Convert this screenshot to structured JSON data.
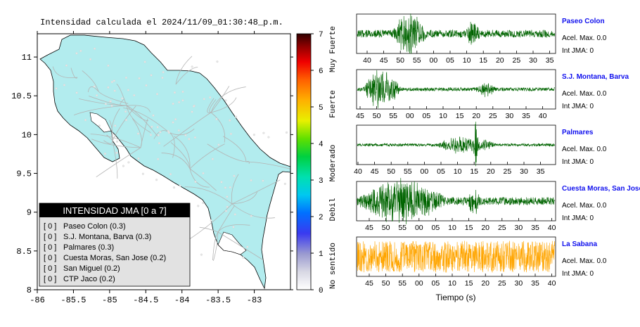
{
  "title": "Intensidad calculada el 2024/11/09_01:30:48_p.m.",
  "map": {
    "lon_ticks": [
      "-86",
      "-85.5",
      "-85",
      "-84.5",
      "-84",
      "-83.5",
      "-83"
    ],
    "lat_ticks": [
      "11",
      "10.5",
      "10",
      "9.5",
      "9",
      "8.5",
      "8"
    ],
    "land_color": "#b2ecee",
    "road_color": "#b4b4b4"
  },
  "colorbar": {
    "ticks": [
      "0",
      "1",
      "2",
      "3",
      "4",
      "5",
      "6",
      "7"
    ],
    "labels": [
      "No sentido",
      "Debil",
      "Moderado",
      "Fuerte",
      "Muy Fuerte"
    ]
  },
  "legend": {
    "title": "INTENSIDAD JMA [0 a 7]",
    "items": [
      {
        "value": "[ 0 ]",
        "label": "Paseo Colon (0.3)"
      },
      {
        "value": "[ 0 ]",
        "label": "S.J. Montana, Barva (0.3)"
      },
      {
        "value": "[ 0 ]",
        "label": "Palmares (0.3)"
      },
      {
        "value": "[ 0 ]",
        "label": "Cuesta Moras, San Jose (0.2)"
      },
      {
        "value": "[ 0 ]",
        "label": "San Miguel (0.2)"
      },
      {
        "value": "[ 0 ]",
        "label": "CTP Jaco (0.2)"
      }
    ]
  },
  "stations": [
    {
      "name": "Paseo Colon",
      "acel": "Acel. Max. 0.0",
      "int": "Int JMA: 0",
      "color": "#006400",
      "ticks": [
        "40",
        "45",
        "50",
        "55",
        "00",
        "05",
        "10",
        "15",
        "20",
        "25",
        "30",
        "35"
      ]
    },
    {
      "name": "S.J. Montana, Barva",
      "acel": "Acel. Max. 0.0",
      "int": "Int JMA: 0",
      "color": "#006400",
      "ticks": [
        "45",
        "50",
        "55",
        "00",
        "05",
        "10",
        "15",
        "20",
        "25",
        "30",
        "35",
        "40"
      ]
    },
    {
      "name": "Palmares",
      "acel": "Acel. Max. 0.0",
      "int": "Int JMA: 0",
      "color": "#006400",
      "ticks": [
        "40",
        "45",
        "50",
        "55",
        "00",
        "05",
        "10",
        "15",
        "20",
        "25",
        "30",
        "35"
      ]
    },
    {
      "name": "Cuesta Moras, San Jose",
      "acel": "Acel. Max. 0.0",
      "int": "Int JMA: 0",
      "color": "#006400",
      "ticks": [
        "45",
        "50",
        "55",
        "00",
        "05",
        "10",
        "15",
        "20",
        "25",
        "30",
        "35",
        "40"
      ]
    },
    {
      "name": "La Sabana",
      "acel": "Acel. Max. 0.0",
      "int": "Int JMA: 0",
      "color": "#ffa500",
      "ticks": [
        "45",
        "50",
        "55",
        "00",
        "05",
        "10",
        "15",
        "20",
        "25",
        "30",
        "35",
        "40"
      ]
    }
  ],
  "xlabel": "Tiempo (s)",
  "chart_data": [
    {
      "type": "heatmap",
      "title": "Intensidad calculada el 2024/11/09_01:30:48_p.m.",
      "xlim": [
        -86,
        -82.5
      ],
      "ylim": [
        8,
        11.3
      ],
      "colorbar_range": [
        0,
        7
      ],
      "stations": [
        {
          "name": "Paseo Colon",
          "intensity": 0.3
        },
        {
          "name": "S.J. Montana, Barva",
          "intensity": 0.3
        },
        {
          "name": "Palmares",
          "intensity": 0.3
        },
        {
          "name": "Cuesta Moras, San Jose",
          "intensity": 0.2
        },
        {
          "name": "San Miguel",
          "intensity": 0.2
        },
        {
          "name": "CTP Jaco",
          "intensity": 0.2
        }
      ]
    },
    {
      "type": "line",
      "xlabel": "Tiempo (s)",
      "series": [
        {
          "name": "Paseo Colon",
          "acel_max": 0.0,
          "int_jma": 0
        },
        {
          "name": "S.J. Montana, Barva",
          "acel_max": 0.0,
          "int_jma": 0
        },
        {
          "name": "Palmares",
          "acel_max": 0.0,
          "int_jma": 0
        },
        {
          "name": "Cuesta Moras, San Jose",
          "acel_max": 0.0,
          "int_jma": 0
        },
        {
          "name": "La Sabana",
          "acel_max": 0.0,
          "int_jma": 0
        }
      ]
    }
  ]
}
